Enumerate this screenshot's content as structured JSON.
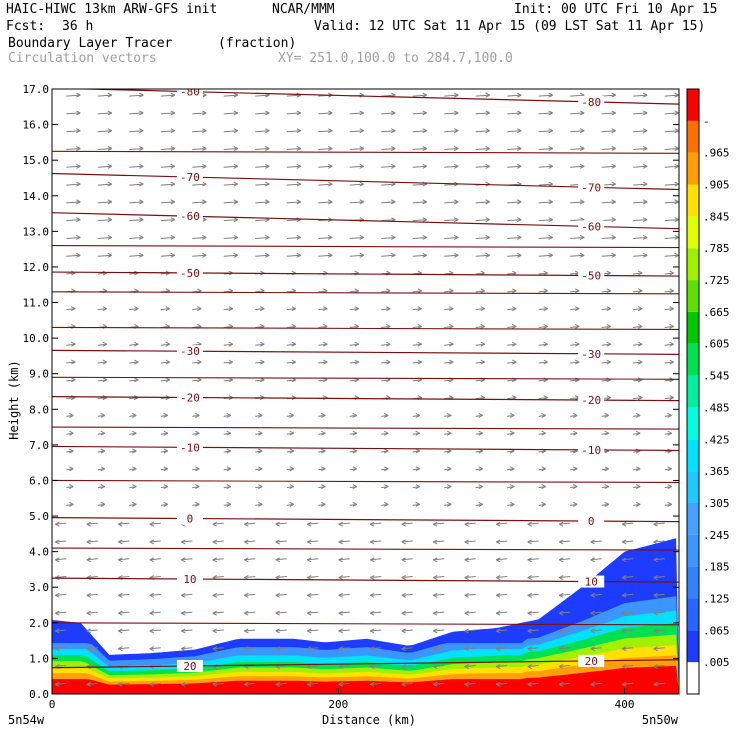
{
  "header": {
    "model": "HAIC-HIWC 13km ARW-GFS init",
    "org": "NCAR/MMM",
    "init": "Init: 00 UTC Fri 10 Apr 15",
    "fcst_label": "Fcst:",
    "fcst_value": "36 h",
    "valid": "Valid: 12 UTC Sat 11 Apr 15 (09 LST Sat 11 Apr 15)",
    "field_name": "Boundary Layer Tracer",
    "field_unit": "(fraction)",
    "vector_name": "Circulation vectors",
    "xy_range": "XY= 251.0,100.0 to 284.7,100.0"
  },
  "chart_data": {
    "type": "heatmap",
    "xlabel": "Distance (km)",
    "ylabel": "Height (km)",
    "xlim": [
      0,
      438
    ],
    "ylim": [
      0,
      17
    ],
    "x_ticks": [
      0,
      200,
      400
    ],
    "y_ticks": [
      "0.0",
      "1.0",
      "2.0",
      "3.0",
      "4.0",
      "5.0",
      "6.0",
      "7.0",
      "8.0",
      "9.0",
      "10.0",
      "11.0",
      "12.0",
      "13.0",
      "14.0",
      "15.0",
      "16.0",
      "17.0"
    ],
    "x_endpoint_labels": [
      "5n54w",
      "5n50w"
    ],
    "colorbar": {
      "labels": [
        ".005",
        ".065",
        ".125",
        ".185",
        ".245",
        ".305",
        ".365",
        ".425",
        ".485",
        ".545",
        ".605",
        ".665",
        ".725",
        ".785",
        ".845",
        ".905",
        ".965",
        "-"
      ],
      "colors": [
        "#ffffff",
        "#1e3cff",
        "#2a64ff",
        "#3282ff",
        "#3c96ff",
        "#46a0ff",
        "#20c8ff",
        "#00e0ff",
        "#00ffe0",
        "#00f0a0",
        "#00e050",
        "#00c800",
        "#60e000",
        "#a0f000",
        "#e0ff00",
        "#ffe000",
        "#ffa000",
        "#ff7000",
        "#ff0000"
      ]
    },
    "tracer_top_km": [
      {
        "x": 0,
        "top": 2.08
      },
      {
        "x": 20,
        "top": 2.0
      },
      {
        "x": 40,
        "top": 1.1
      },
      {
        "x": 70,
        "top": 1.15
      },
      {
        "x": 100,
        "top": 1.25
      },
      {
        "x": 130,
        "top": 1.55
      },
      {
        "x": 170,
        "top": 1.55
      },
      {
        "x": 190,
        "top": 1.45
      },
      {
        "x": 220,
        "top": 1.55
      },
      {
        "x": 250,
        "top": 1.35
      },
      {
        "x": 280,
        "top": 1.75
      },
      {
        "x": 310,
        "top": 1.85
      },
      {
        "x": 340,
        "top": 2.1
      },
      {
        "x": 370,
        "top": 3.0
      },
      {
        "x": 400,
        "top": 4.0
      },
      {
        "x": 438,
        "top": 4.4
      }
    ],
    "temperature_contours": [
      {
        "label": "-80",
        "height_km": 16.8
      },
      {
        "label": "-70",
        "height_km": 14.4
      },
      {
        "label": "-60",
        "height_km": 13.3
      },
      {
        "label": "-50",
        "height_km": 11.8
      },
      {
        "label": "-30",
        "height_km": 9.6
      },
      {
        "label": "-20",
        "height_km": 8.3
      },
      {
        "label": "-10",
        "height_km": 6.9
      },
      {
        "label": "0",
        "height_km": 4.9
      },
      {
        "label": "10",
        "height_km": 3.2
      },
      {
        "label": "20",
        "height_km": 0.85
      }
    ],
    "grid": false
  }
}
